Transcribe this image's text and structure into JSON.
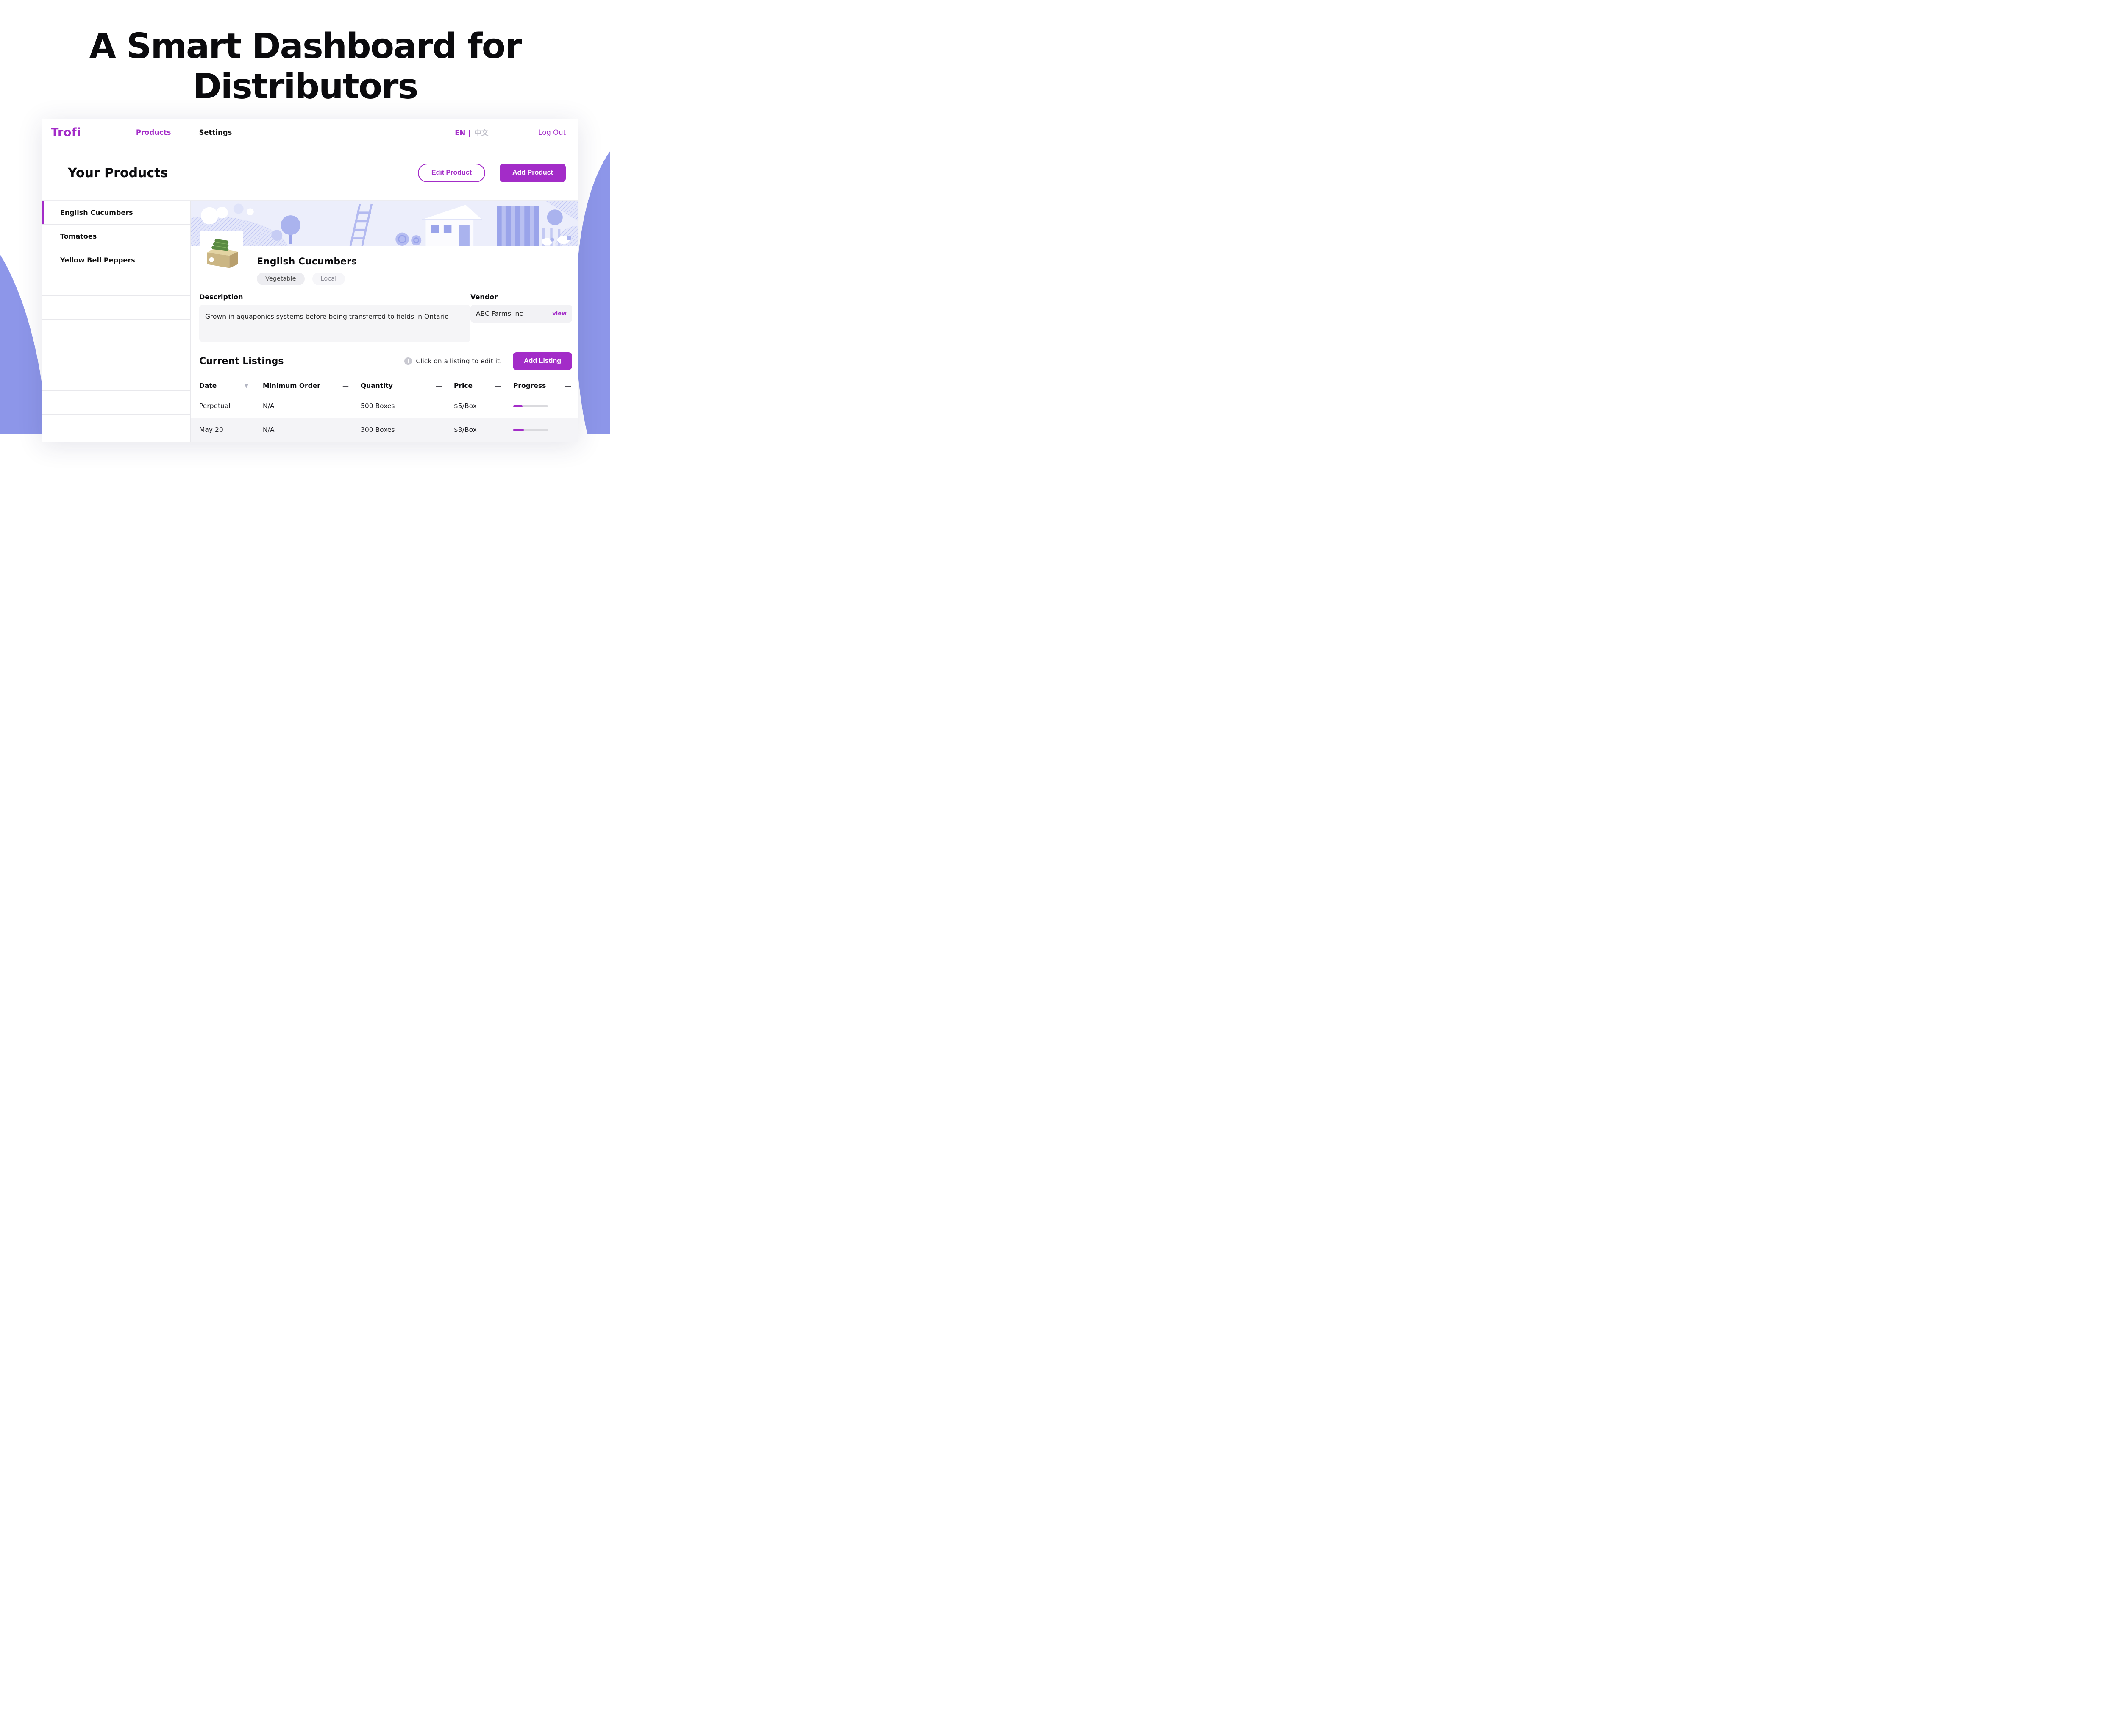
{
  "page": {
    "title": "A Smart Dashboard for Distributors"
  },
  "colors": {
    "accent": "#a32cc8",
    "periwinkle": "#8d96e9"
  },
  "nav": {
    "brand": "Trofi",
    "products": "Products",
    "settings": "Settings",
    "lang_en": "EN |",
    "lang_zh": "中文",
    "logout": "Log Out"
  },
  "header": {
    "title": "Your Products",
    "edit_button": "Edit Product",
    "add_button": "Add Product"
  },
  "sidebar": {
    "items": [
      {
        "label": "English Cucumbers",
        "active": true
      },
      {
        "label": "Tomatoes",
        "active": false
      },
      {
        "label": "Yellow Bell Peppers",
        "active": false
      }
    ]
  },
  "product": {
    "name": "English Cucumbers",
    "tags": [
      "Vegetable",
      "Local"
    ],
    "description_label": "Description",
    "description": "Grown in aquaponics systems before being transferred to fields in Ontario",
    "vendor_label": "Vendor",
    "vendor_name": "ABC Farms Inc",
    "vendor_view": "view"
  },
  "listings": {
    "title": "Current Listings",
    "hint": "Click on a listing to edit it.",
    "add_button": "Add Listing",
    "columns": [
      {
        "label": "Date",
        "indicator": "▼"
      },
      {
        "label": "Minimum Order",
        "indicator": "—"
      },
      {
        "label": "Quantity",
        "indicator": "—"
      },
      {
        "label": "Price",
        "indicator": "—"
      },
      {
        "label": "Progress",
        "indicator": "—"
      }
    ],
    "rows": [
      {
        "date": "Perpetual",
        "minimum_order": "N/A",
        "quantity": "500 Boxes",
        "price": "$5/Box",
        "progress": 27
      },
      {
        "date": "May 20",
        "minimum_order": "N/A",
        "quantity": "300 Boxes",
        "price": "$3/Box",
        "progress": 31
      }
    ]
  }
}
